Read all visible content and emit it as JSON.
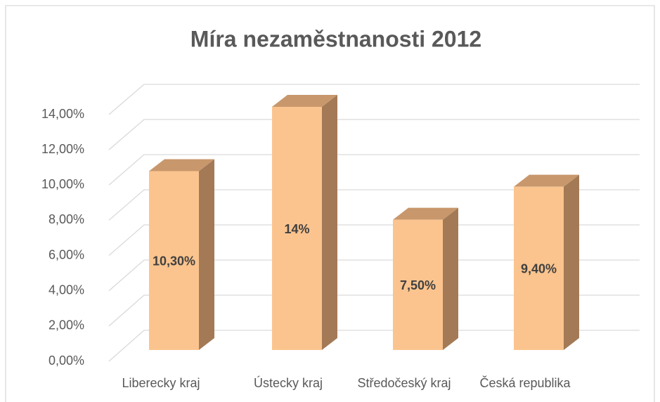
{
  "chart_data": {
    "type": "bar3d",
    "title": "Míra nezaměstnanosti 2012",
    "categories": [
      "Liberecky kraj",
      "Ústecky kraj",
      "Středočeský kraj",
      "Česká republika"
    ],
    "values": [
      10.3,
      14,
      7.5,
      9.4
    ],
    "value_labels": [
      "10,30%",
      "14%",
      "7,50%",
      "9,40%"
    ],
    "color": "#fbc48e",
    "ylim": [
      0,
      14
    ],
    "yticks": [
      {
        "value": 0,
        "label": "0,00%"
      },
      {
        "value": 2,
        "label": "2,00%"
      },
      {
        "value": 4,
        "label": "4,00%"
      },
      {
        "value": 6,
        "label": "6,00%"
      },
      {
        "value": 8,
        "label": "8,00%"
      },
      {
        "value": 10,
        "label": "10,00%"
      },
      {
        "value": 12,
        "label": "12,00%"
      },
      {
        "value": 14,
        "label": "14,00%"
      }
    ],
    "grid": true
  }
}
